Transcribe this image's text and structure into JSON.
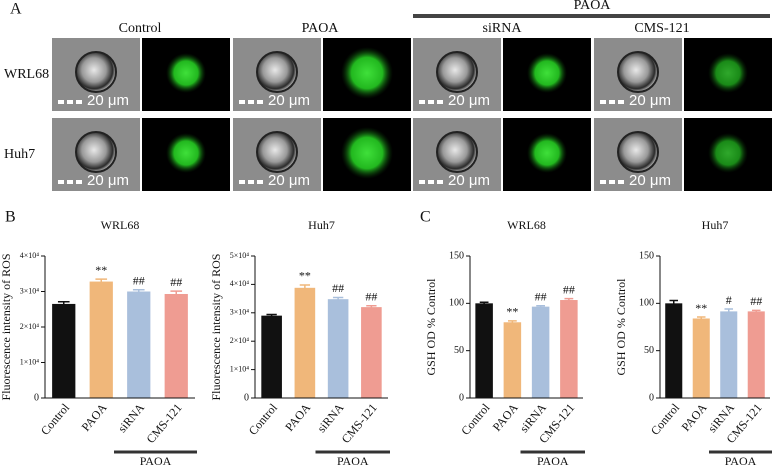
{
  "panel_a": {
    "label": "A",
    "group_label": "PAOA",
    "columns": [
      "Control",
      "PAOA",
      "siRNA",
      "CMS-121"
    ],
    "rows": [
      "WRL68",
      "Huh7"
    ],
    "scale_bar": "20 μm"
  },
  "panel_labels": {
    "b": "B",
    "c": "C"
  },
  "chart_data": [
    {
      "type": "bar",
      "title": "WRL68",
      "ylabel": "Fluorescence intensity of ROS",
      "categories": [
        "Control",
        "PAOA",
        "siRNA",
        "CMS-121"
      ],
      "values": [
        26500,
        32800,
        30000,
        29300
      ],
      "errors": [
        600,
        700,
        500,
        800
      ],
      "colors": [
        "#111111",
        "#f0b77a",
        "#a9bfdc",
        "#ef9c92"
      ],
      "annotations": [
        null,
        "**",
        "##",
        "##"
      ],
      "group_label": "PAOA",
      "ylim": [
        0,
        40000
      ],
      "yticks": [
        0,
        {
          "value": 10000,
          "label": "1×10⁴"
        },
        {
          "value": 20000,
          "label": "2×10⁴"
        },
        {
          "value": 30000,
          "label": "3×10⁴"
        },
        {
          "value": 40000,
          "label": "4×10⁴"
        }
      ]
    },
    {
      "type": "bar",
      "title": "Huh7",
      "ylabel": "Fluorescence intensity of ROS",
      "categories": [
        "Control",
        "PAOA",
        "siRNA",
        "CMS-121"
      ],
      "values": [
        29000,
        38800,
        34800,
        32000
      ],
      "errors": [
        400,
        1000,
        600,
        500
      ],
      "colors": [
        "#111111",
        "#f0b77a",
        "#a9bfdc",
        "#ef9c92"
      ],
      "annotations": [
        null,
        "**",
        "##",
        "##"
      ],
      "group_label": "PAOA",
      "ylim": [
        0,
        50000
      ],
      "yticks": [
        0,
        {
          "value": 10000,
          "label": "1×10⁴"
        },
        {
          "value": 20000,
          "label": "2×10⁴"
        },
        {
          "value": 30000,
          "label": "3×10⁴"
        },
        {
          "value": 40000,
          "label": "4×10⁴"
        },
        {
          "value": 50000,
          "label": "5×10⁴"
        }
      ]
    },
    {
      "type": "bar",
      "title": "WRL68",
      "ylabel": "GSH OD % Control",
      "categories": [
        "Control",
        "PAOA",
        "siRNA",
        "CMS-121"
      ],
      "values": [
        100,
        80,
        96.5,
        103.5
      ],
      "errors": [
        1.2,
        1.5,
        1,
        1.5
      ],
      "colors": [
        "#111111",
        "#f0b77a",
        "#a9bfdc",
        "#ef9c92"
      ],
      "annotations": [
        null,
        "**",
        "##",
        "##"
      ],
      "group_label": "PAOA",
      "ylim": [
        0,
        150
      ],
      "yticks": [
        0,
        50,
        100,
        150
      ]
    },
    {
      "type": "bar",
      "title": "Huh7",
      "ylabel": "GSH OD % Control",
      "categories": [
        "Control",
        "PAOA",
        "siRNA",
        "CMS-121"
      ],
      "values": [
        100,
        84,
        91.5,
        91.5
      ],
      "errors": [
        3,
        1.5,
        2.5,
        1
      ],
      "colors": [
        "#111111",
        "#f0b77a",
        "#a9bfdc",
        "#ef9c92"
      ],
      "annotations": [
        null,
        "**",
        "#",
        "##"
      ],
      "group_label": "PAOA",
      "ylim": [
        0,
        150
      ],
      "yticks": [
        0,
        50,
        100,
        150
      ]
    }
  ]
}
